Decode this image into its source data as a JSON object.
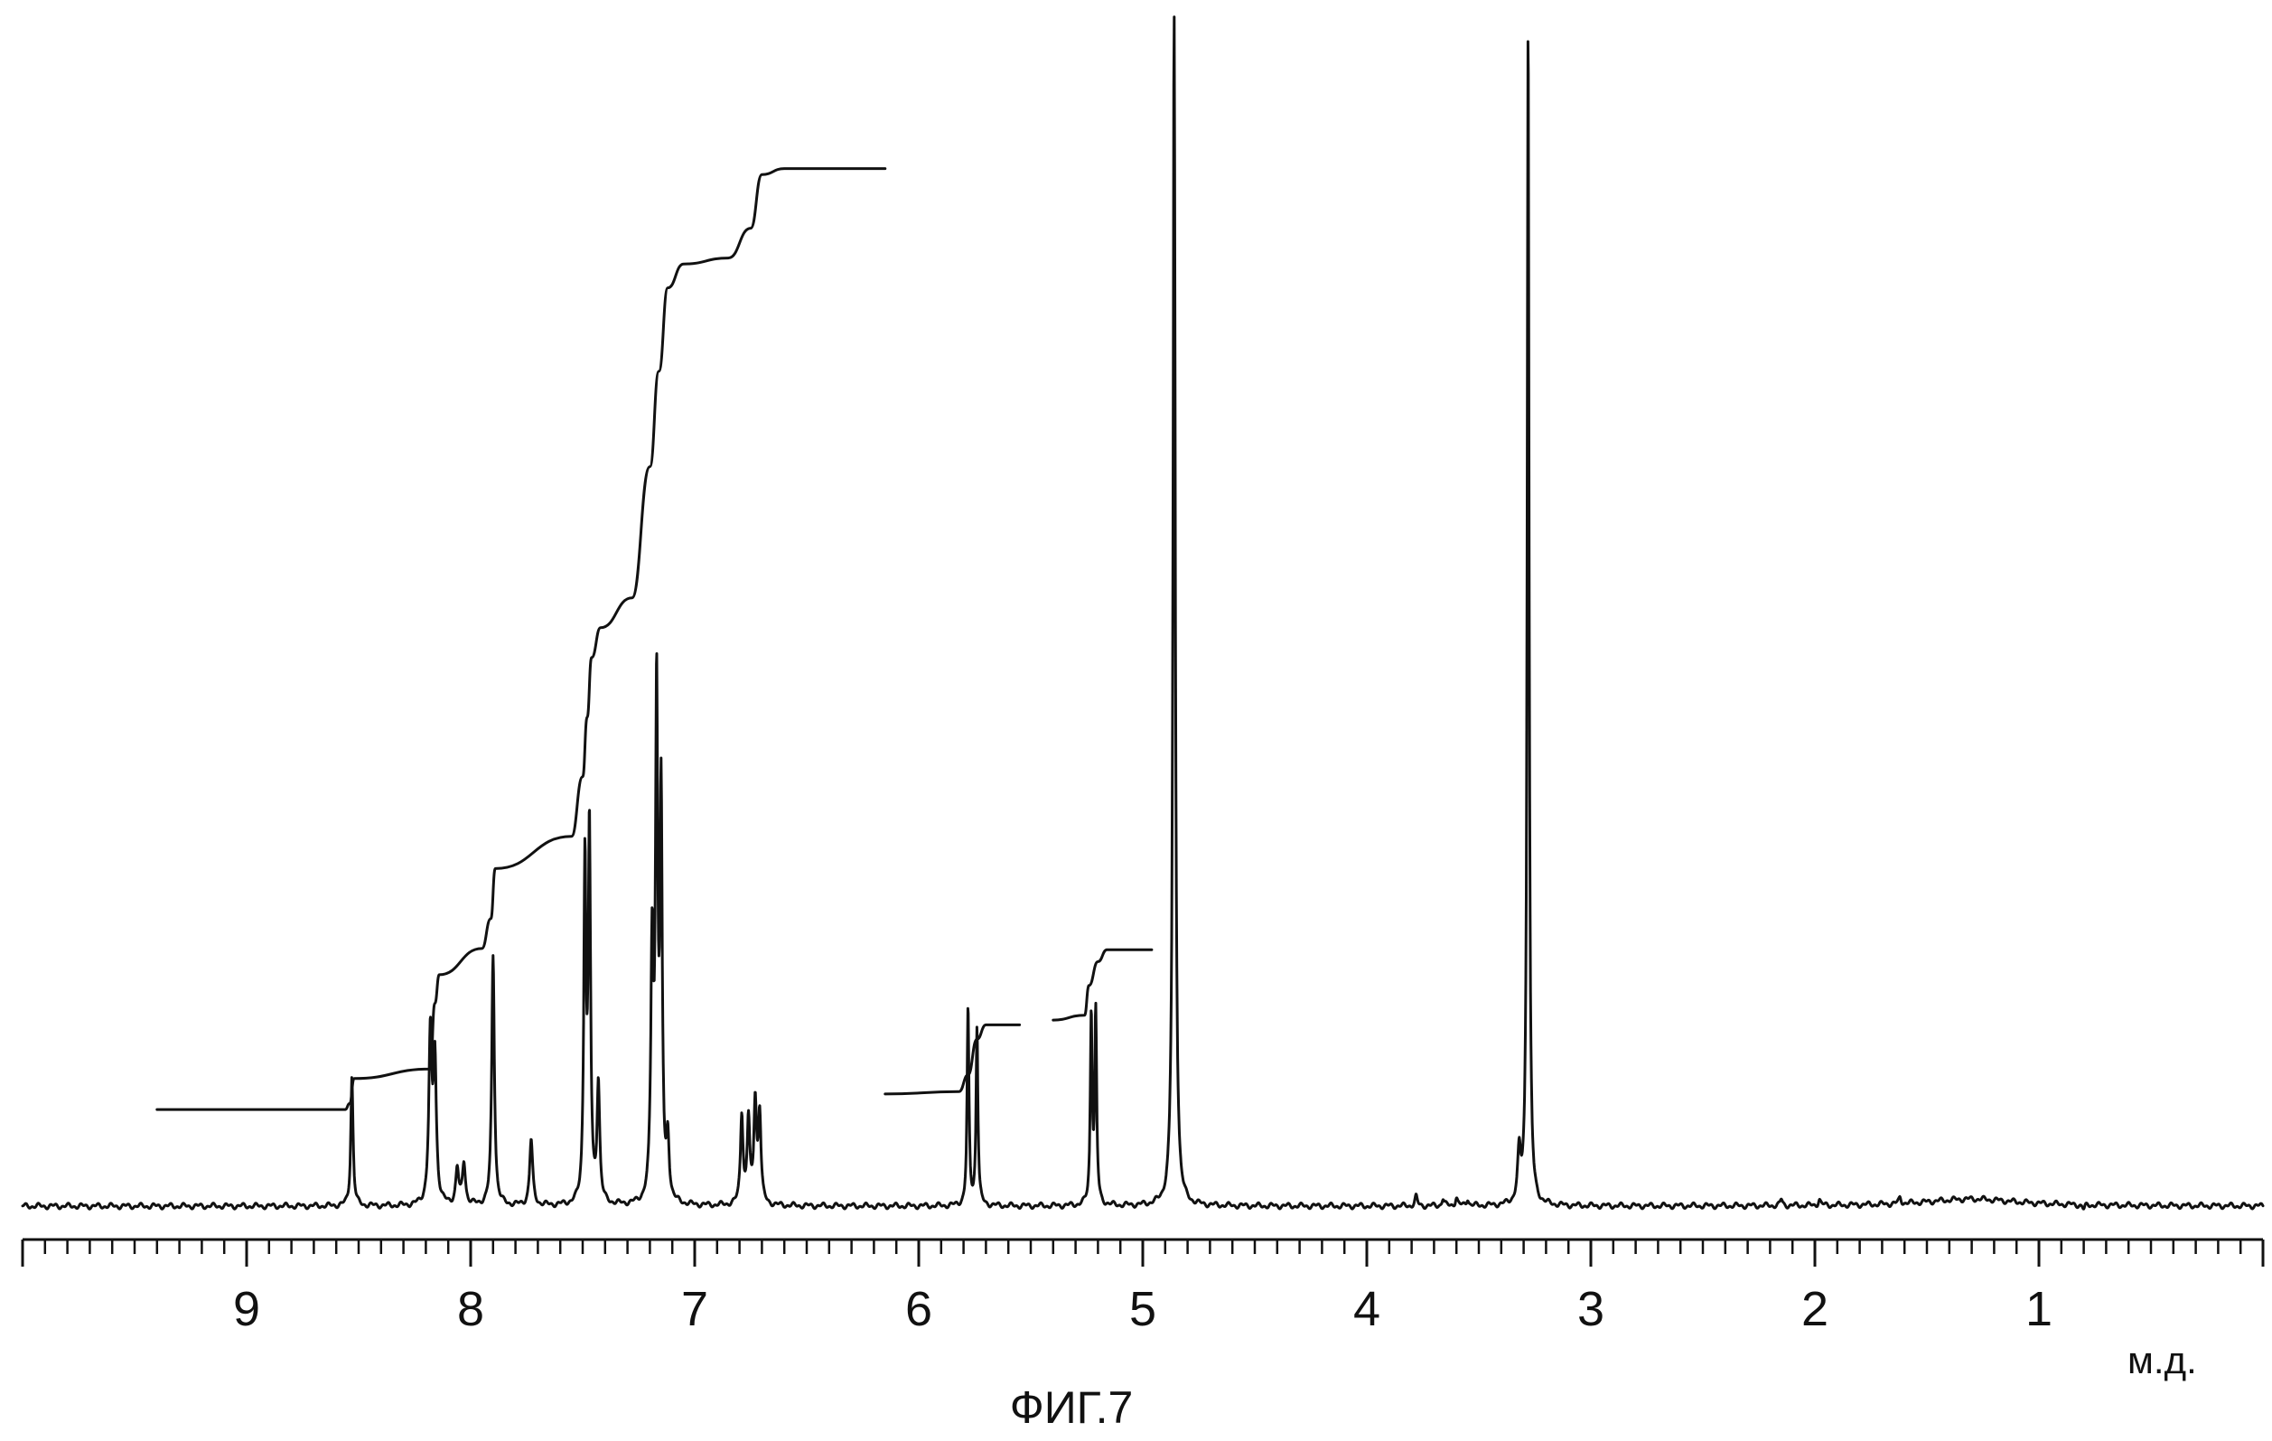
{
  "chart_data": {
    "type": "line",
    "title": "",
    "xlabel": "м.д.",
    "ylabel": "",
    "caption": "ФИГ.7",
    "x_reversed": true,
    "xlim": [
      10.0,
      0.0
    ],
    "grid": false,
    "tick_labels": [
      "9",
      "8",
      "7",
      "6",
      "5",
      "4",
      "3",
      "2",
      "1"
    ],
    "tick_values": [
      9,
      8,
      7,
      6,
      5,
      4,
      3,
      2,
      1
    ],
    "minor_tick_step": 0.1,
    "peaks": [
      {
        "ppm": 8.53,
        "height": 0.11,
        "width": 0.006
      },
      {
        "ppm": 8.18,
        "height": 0.14,
        "width": 0.008
      },
      {
        "ppm": 8.16,
        "height": 0.12,
        "width": 0.008
      },
      {
        "ppm": 8.06,
        "height": 0.03,
        "width": 0.008
      },
      {
        "ppm": 8.03,
        "height": 0.035,
        "width": 0.008
      },
      {
        "ppm": 7.9,
        "height": 0.21,
        "width": 0.007
      },
      {
        "ppm": 7.73,
        "height": 0.055,
        "width": 0.008
      },
      {
        "ppm": 7.49,
        "height": 0.285,
        "width": 0.006
      },
      {
        "ppm": 7.47,
        "height": 0.31,
        "width": 0.006
      },
      {
        "ppm": 7.43,
        "height": 0.1,
        "width": 0.007
      },
      {
        "ppm": 7.19,
        "height": 0.21,
        "width": 0.007
      },
      {
        "ppm": 7.17,
        "height": 0.42,
        "width": 0.006
      },
      {
        "ppm": 7.15,
        "height": 0.33,
        "width": 0.006
      },
      {
        "ppm": 7.12,
        "height": 0.05,
        "width": 0.007
      },
      {
        "ppm": 6.79,
        "height": 0.075,
        "width": 0.007
      },
      {
        "ppm": 6.76,
        "height": 0.07,
        "width": 0.007
      },
      {
        "ppm": 6.73,
        "height": 0.085,
        "width": 0.007
      },
      {
        "ppm": 6.71,
        "height": 0.075,
        "width": 0.007
      },
      {
        "ppm": 5.78,
        "height": 0.165,
        "width": 0.005
      },
      {
        "ppm": 5.74,
        "height": 0.15,
        "width": 0.005
      },
      {
        "ppm": 5.23,
        "height": 0.16,
        "width": 0.005
      },
      {
        "ppm": 5.21,
        "height": 0.16,
        "width": 0.005
      },
      {
        "ppm": 4.86,
        "height": 1.0,
        "width": 0.006
      },
      {
        "ppm": 3.32,
        "height": 0.04,
        "width": 0.008
      },
      {
        "ppm": 3.28,
        "height": 1.0,
        "width": 0.005
      },
      {
        "ppm": 1.3,
        "height": 0.006,
        "width": 0.25
      }
    ],
    "integral_curves": [
      {
        "x": [
          9.4,
          8.56,
          8.54,
          8.52,
          8.18,
          8.16,
          8.14,
          7.95,
          7.91,
          7.89,
          7.55,
          7.5,
          7.48,
          7.46,
          7.42,
          7.28,
          7.2,
          7.16,
          7.12,
          7.05,
          6.85,
          6.75,
          6.7,
          6.6,
          6.15
        ],
        "y": [
          0.081,
          0.081,
          0.086,
          0.107,
          0.115,
          0.17,
          0.194,
          0.216,
          0.241,
          0.283,
          0.31,
          0.36,
          0.41,
          0.46,
          0.485,
          0.51,
          0.62,
          0.7,
          0.77,
          0.79,
          0.795,
          0.82,
          0.865,
          0.87,
          0.87
        ]
      },
      {
        "x": [
          6.15,
          5.82,
          5.78,
          5.74,
          5.7,
          5.55
        ],
        "y": [
          0.094,
          0.096,
          0.11,
          0.14,
          0.152,
          0.152
        ]
      },
      {
        "x": [
          5.4,
          5.26,
          5.24,
          5.2,
          5.16,
          4.96
        ],
        "y": [
          0.156,
          0.16,
          0.185,
          0.205,
          0.215,
          0.215
        ]
      }
    ],
    "noise_features": [
      {
        "ppm": 3.78,
        "height": 0.008
      },
      {
        "ppm": 3.66,
        "height": 0.006
      },
      {
        "ppm": 3.6,
        "height": 0.007
      },
      {
        "ppm": 3.55,
        "height": 0.006
      },
      {
        "ppm": 2.15,
        "height": 0.005
      },
      {
        "ppm": 1.98,
        "height": 0.005
      },
      {
        "ppm": 1.62,
        "height": 0.005
      },
      {
        "ppm": 0.8,
        "height": -0.004
      }
    ]
  }
}
